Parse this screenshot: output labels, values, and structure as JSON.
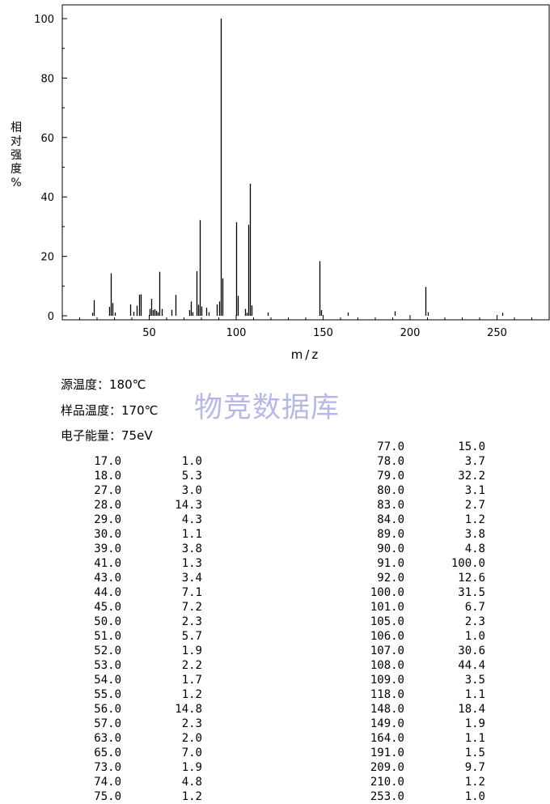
{
  "chart_data": {
    "type": "bar",
    "xlabel": "m/z",
    "ylabel_chars": [
      "相",
      "对",
      "强",
      "度",
      "%"
    ],
    "xlim": [
      0,
      280
    ],
    "ylim": [
      0,
      100
    ],
    "xticks": [
      50,
      100,
      150,
      200,
      250
    ],
    "yticks": [
      0,
      20,
      40,
      60,
      80,
      100
    ],
    "peaks": [
      {
        "mz": 17.0,
        "abundance": 1.0
      },
      {
        "mz": 18.0,
        "abundance": 5.3
      },
      {
        "mz": 27.0,
        "abundance": 3.0
      },
      {
        "mz": 28.0,
        "abundance": 14.3
      },
      {
        "mz": 29.0,
        "abundance": 4.3
      },
      {
        "mz": 30.0,
        "abundance": 1.1
      },
      {
        "mz": 39.0,
        "abundance": 3.8
      },
      {
        "mz": 41.0,
        "abundance": 1.3
      },
      {
        "mz": 43.0,
        "abundance": 3.4
      },
      {
        "mz": 44.0,
        "abundance": 7.1
      },
      {
        "mz": 45.0,
        "abundance": 7.2
      },
      {
        "mz": 50.0,
        "abundance": 2.3
      },
      {
        "mz": 51.0,
        "abundance": 5.7
      },
      {
        "mz": 52.0,
        "abundance": 1.9
      },
      {
        "mz": 53.0,
        "abundance": 2.2
      },
      {
        "mz": 54.0,
        "abundance": 1.7
      },
      {
        "mz": 55.0,
        "abundance": 1.2
      },
      {
        "mz": 56.0,
        "abundance": 14.8
      },
      {
        "mz": 57.0,
        "abundance": 2.3
      },
      {
        "mz": 63.0,
        "abundance": 2.0
      },
      {
        "mz": 65.0,
        "abundance": 7.0
      },
      {
        "mz": 73.0,
        "abundance": 1.9
      },
      {
        "mz": 74.0,
        "abundance": 4.8
      },
      {
        "mz": 75.0,
        "abundance": 1.2
      },
      {
        "mz": 77.0,
        "abundance": 15.0
      },
      {
        "mz": 78.0,
        "abundance": 3.7
      },
      {
        "mz": 79.0,
        "abundance": 32.2
      },
      {
        "mz": 80.0,
        "abundance": 3.1
      },
      {
        "mz": 83.0,
        "abundance": 2.7
      },
      {
        "mz": 84.0,
        "abundance": 1.2
      },
      {
        "mz": 89.0,
        "abundance": 3.8
      },
      {
        "mz": 90.0,
        "abundance": 4.8
      },
      {
        "mz": 91.0,
        "abundance": 100.0
      },
      {
        "mz": 92.0,
        "abundance": 12.6
      },
      {
        "mz": 100.0,
        "abundance": 31.5
      },
      {
        "mz": 101.0,
        "abundance": 6.7
      },
      {
        "mz": 105.0,
        "abundance": 2.3
      },
      {
        "mz": 106.0,
        "abundance": 1.0
      },
      {
        "mz": 107.0,
        "abundance": 30.6
      },
      {
        "mz": 108.0,
        "abundance": 44.4
      },
      {
        "mz": 109.0,
        "abundance": 3.5
      },
      {
        "mz": 118.0,
        "abundance": 1.1
      },
      {
        "mz": 148.0,
        "abundance": 18.4
      },
      {
        "mz": 149.0,
        "abundance": 1.9
      },
      {
        "mz": 164.0,
        "abundance": 1.1
      },
      {
        "mz": 191.0,
        "abundance": 1.5
      },
      {
        "mz": 209.0,
        "abundance": 9.7
      },
      {
        "mz": 210.0,
        "abundance": 1.2
      },
      {
        "mz": 253.0,
        "abundance": 1.0
      }
    ]
  },
  "conditions": {
    "source_temp": "源温度：180℃",
    "sample_temp": "样品温度：170℃",
    "electron_energy": "电子能量：75eV"
  },
  "watermark": "物竞数据库",
  "table": {
    "left": [
      [
        "17.0",
        "1.0"
      ],
      [
        "18.0",
        "5.3"
      ],
      [
        "27.0",
        "3.0"
      ],
      [
        "28.0",
        "14.3"
      ],
      [
        "29.0",
        "4.3"
      ],
      [
        "30.0",
        "1.1"
      ],
      [
        "39.0",
        "3.8"
      ],
      [
        "41.0",
        "1.3"
      ],
      [
        "43.0",
        "3.4"
      ],
      [
        "44.0",
        "7.1"
      ],
      [
        "45.0",
        "7.2"
      ],
      [
        "50.0",
        "2.3"
      ],
      [
        "51.0",
        "5.7"
      ],
      [
        "52.0",
        "1.9"
      ],
      [
        "53.0",
        "2.2"
      ],
      [
        "54.0",
        "1.7"
      ],
      [
        "55.0",
        "1.2"
      ],
      [
        "56.0",
        "14.8"
      ],
      [
        "57.0",
        "2.3"
      ],
      [
        "63.0",
        "2.0"
      ],
      [
        "65.0",
        "7.0"
      ],
      [
        "73.0",
        "1.9"
      ],
      [
        "74.0",
        "4.8"
      ],
      [
        "75.0",
        "1.2"
      ]
    ],
    "right": [
      [
        "77.0",
        "15.0"
      ],
      [
        "78.0",
        "3.7"
      ],
      [
        "79.0",
        "32.2"
      ],
      [
        "80.0",
        "3.1"
      ],
      [
        "83.0",
        "2.7"
      ],
      [
        "84.0",
        "1.2"
      ],
      [
        "89.0",
        "3.8"
      ],
      [
        "90.0",
        "4.8"
      ],
      [
        "91.0",
        "100.0"
      ],
      [
        "92.0",
        "12.6"
      ],
      [
        "100.0",
        "31.5"
      ],
      [
        "101.0",
        "6.7"
      ],
      [
        "105.0",
        "2.3"
      ],
      [
        "106.0",
        "1.0"
      ],
      [
        "107.0",
        "30.6"
      ],
      [
        "108.0",
        "44.4"
      ],
      [
        "109.0",
        "3.5"
      ],
      [
        "118.0",
        "1.1"
      ],
      [
        "148.0",
        "18.4"
      ],
      [
        "149.0",
        "1.9"
      ],
      [
        "164.0",
        "1.1"
      ],
      [
        "191.0",
        "1.5"
      ],
      [
        "209.0",
        "9.7"
      ],
      [
        "210.0",
        "1.2"
      ],
      [
        "253.0",
        "1.0"
      ]
    ]
  }
}
